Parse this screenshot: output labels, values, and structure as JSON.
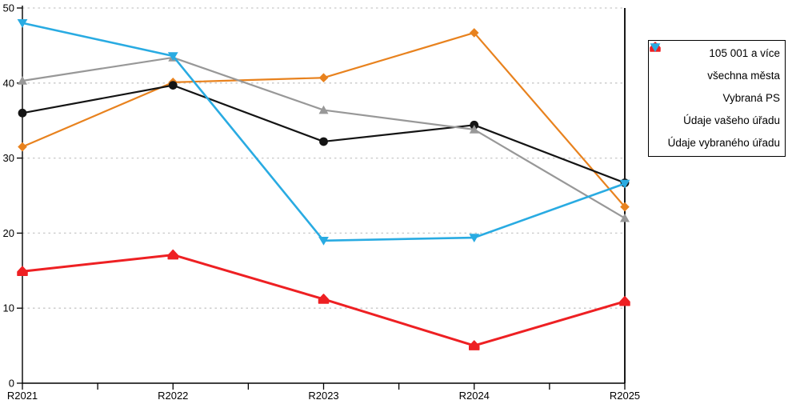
{
  "chart_data": {
    "type": "line",
    "title": "",
    "xlabel": "",
    "ylabel": "",
    "categories": [
      "R2021",
      "R2022",
      "R2023",
      "R2024",
      "R2025"
    ],
    "series": [
      {
        "name": "105 001 a více",
        "color": "#E8821E",
        "marker": "diamond",
        "line_width": 2.2,
        "values": [
          31.5,
          40.1,
          40.7,
          46.7,
          23.5
        ]
      },
      {
        "name": "všechna města",
        "color": "#141414",
        "marker": "circle",
        "line_width": 2.2,
        "values": [
          36.0,
          39.7,
          32.2,
          34.4,
          26.7
        ]
      },
      {
        "name": "Vybraná PS",
        "color": "#989898",
        "marker": "triangle-up",
        "line_width": 2.2,
        "values": [
          40.3,
          43.4,
          36.4,
          33.8,
          22.0
        ]
      },
      {
        "name": "Údaje vašeho úřadu",
        "color": "#EE2023",
        "marker": "pentagon",
        "line_width": 3.0,
        "values": [
          14.9,
          17.1,
          11.2,
          5.0,
          10.9
        ]
      },
      {
        "name": "Údaje vybraného úřadu",
        "color": "#29ABE2",
        "marker": "triangle-down",
        "line_width": 2.6,
        "values": [
          48.0,
          43.6,
          19.0,
          19.4,
          26.6
        ]
      }
    ],
    "ylim": [
      0,
      50
    ],
    "yticks": [
      0,
      10,
      20,
      30,
      40,
      50
    ],
    "grid": "horizontal-dotted",
    "legend_position": "right"
  },
  "colors": {
    "background": "#FFFFFF",
    "axis": "#000000",
    "grid": "#C8C8C8",
    "tick_label": "#000000"
  }
}
